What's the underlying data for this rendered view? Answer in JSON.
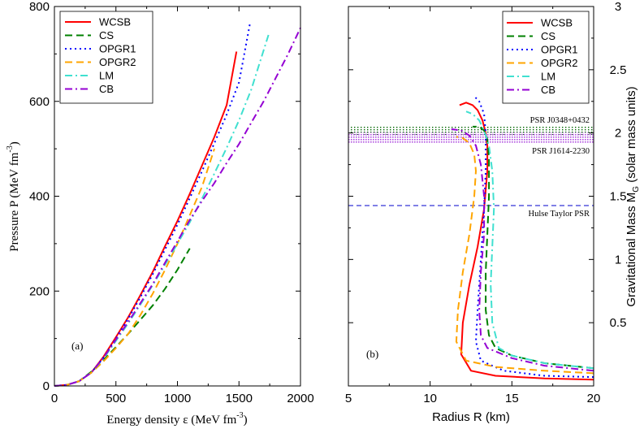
{
  "chart_data": [
    {
      "panel": "a",
      "type": "line",
      "panel_label": "(a)",
      "xlabel_main": "Energy density ε (MeV fm",
      "xlabel_sup": "-3",
      "xlabel_close": ")",
      "ylabel_main": "Pressure P (MeV fm",
      "ylabel_sup": "-3",
      "ylabel_close": ")",
      "xlim": [
        0,
        2000
      ],
      "ylim": [
        0,
        800
      ],
      "xticks": [
        0,
        500,
        1000,
        1500,
        2000
      ],
      "xtick_labels": [
        "0",
        "500",
        "1000",
        "1500",
        "2000"
      ],
      "yticks": [
        0,
        200,
        400,
        600,
        800
      ],
      "ytick_labels": [
        "0",
        "200",
        "400",
        "600",
        "800"
      ],
      "legend_position": "top-left",
      "series": [
        {
          "name": "WCSB",
          "color": "#ff0000",
          "dash": "solid",
          "x": [
            0,
            100,
            200,
            300,
            400,
            500,
            600,
            700,
            800,
            900,
            1000,
            1100,
            1200,
            1300,
            1400,
            1480
          ],
          "y": [
            0,
            2,
            10,
            28,
            62,
            103,
            145,
            192,
            241,
            295,
            348,
            405,
            465,
            525,
            592,
            705
          ]
        },
        {
          "name": "CS",
          "color": "#008000",
          "dash": "dash",
          "x": [
            0,
            100,
            200,
            300,
            400,
            500,
            600,
            700,
            800,
            900,
            1000,
            1100
          ],
          "y": [
            0,
            2,
            10,
            30,
            55,
            82,
            110,
            140,
            170,
            205,
            245,
            290
          ]
        },
        {
          "name": "OPGR1",
          "color": "#0000ff",
          "dash": "dot",
          "x": [
            0,
            100,
            200,
            300,
            400,
            500,
            600,
            700,
            800,
            900,
            1000,
            1100,
            1200,
            1300,
            1400,
            1500,
            1590
          ],
          "y": [
            0,
            2,
            10,
            28,
            60,
            100,
            142,
            188,
            236,
            288,
            340,
            396,
            453,
            512,
            572,
            640,
            765
          ]
        },
        {
          "name": "OPGR2",
          "color": "#ffa500",
          "dash": "dash",
          "x": [
            0,
            100,
            200,
            300,
            400,
            500,
            600,
            700,
            800,
            900,
            1000,
            1100,
            1200,
            1300
          ],
          "y": [
            0,
            2,
            10,
            28,
            52,
            80,
            110,
            150,
            195,
            245,
            300,
            360,
            420,
            500
          ]
        },
        {
          "name": "LM",
          "color": "#40e0d0",
          "dash": "dashdot",
          "x": [
            0,
            100,
            200,
            300,
            400,
            500,
            600,
            700,
            800,
            900,
            1000,
            1100,
            1200,
            1300,
            1400,
            1500,
            1600,
            1740
          ],
          "y": [
            0,
            2,
            10,
            28,
            58,
            95,
            132,
            172,
            213,
            256,
            300,
            345,
            395,
            448,
            502,
            560,
            625,
            740
          ]
        },
        {
          "name": "CB",
          "color": "#9400d3",
          "dash": "dashdot",
          "x": [
            0,
            100,
            200,
            300,
            400,
            500,
            600,
            700,
            800,
            900,
            1000,
            1100,
            1200,
            1300,
            1400,
            1500,
            1600,
            1700,
            1800,
            1900,
            2000
          ],
          "y": [
            0,
            2,
            10,
            28,
            60,
            98,
            135,
            175,
            215,
            260,
            305,
            350,
            390,
            428,
            470,
            510,
            555,
            600,
            650,
            700,
            755
          ]
        }
      ]
    },
    {
      "panel": "b",
      "type": "line",
      "panel_label": "(b)",
      "xlabel": "Radius R (km)",
      "ylabel_main": "Gravitational Mass M",
      "ylabel_sub": "G",
      "ylabel_rest": " (solar mass units)",
      "xlim": [
        5,
        20
      ],
      "ylim": [
        0,
        3
      ],
      "xticks": [
        5,
        10,
        15,
        20
      ],
      "xtick_labels": [
        "5",
        "10",
        "15",
        "20"
      ],
      "yticks": [
        0.5,
        1,
        1.5,
        2,
        2.5,
        3
      ],
      "ytick_labels": [
        "0.5",
        "1",
        "1.5",
        "2",
        "2.5",
        "3"
      ],
      "legend_position": "top-right",
      "reference_bands": [
        {
          "label": "PSR J0348+0432",
          "ymin": 1.97,
          "ymax": 2.05,
          "color": "#006400",
          "pattern": "dots"
        },
        {
          "label": "PSR J1614-2230",
          "ymin": 1.93,
          "ymax": 2.01,
          "color": "#9400d3",
          "pattern": "dots"
        }
      ],
      "reference_lines": [
        {
          "label": "Hulse Taylor PSR",
          "y": 1.44,
          "color": "#0000cd",
          "dash": "dash"
        }
      ],
      "series": [
        {
          "name": "WCSB",
          "color": "#ff0000",
          "dash": "solid",
          "x": [
            20,
            17,
            14,
            12.5,
            11.9,
            12.0,
            12.4,
            12.9,
            13.3,
            13.5,
            13.5,
            13.4,
            13.2,
            12.9,
            12.6,
            12.2,
            11.8
          ],
          "y": [
            0.05,
            0.06,
            0.08,
            0.12,
            0.25,
            0.5,
            0.8,
            1.1,
            1.4,
            1.7,
            1.9,
            2.0,
            2.1,
            2.18,
            2.22,
            2.24,
            2.22
          ]
        },
        {
          "name": "CS",
          "color": "#008000",
          "dash": "dash",
          "x": [
            20,
            17,
            15,
            14,
            13.6,
            13.4,
            13.4,
            13.5,
            13.6,
            13.6,
            13.5,
            13.3,
            13.0,
            12.6
          ],
          "y": [
            0.14,
            0.18,
            0.24,
            0.3,
            0.4,
            0.6,
            0.9,
            1.2,
            1.5,
            1.8,
            1.95,
            2.02,
            2.05,
            2.05
          ]
        },
        {
          "name": "OPGR1",
          "color": "#0000ff",
          "dash": "dot",
          "x": [
            20,
            17,
            14.5,
            13.1,
            12.8,
            12.9,
            13.1,
            13.3,
            13.4,
            13.4,
            13.3,
            13.0,
            12.7
          ],
          "y": [
            0.07,
            0.08,
            0.12,
            0.2,
            0.35,
            0.6,
            1.0,
            1.4,
            1.7,
            2.0,
            2.15,
            2.25,
            2.29
          ]
        },
        {
          "name": "OPGR2",
          "color": "#ffa500",
          "dash": "dash",
          "x": [
            20,
            17,
            14,
            12.2,
            11.6,
            11.7,
            12.0,
            12.4,
            12.7,
            12.8,
            12.7,
            12.4,
            12.0,
            11.6
          ],
          "y": [
            0.1,
            0.12,
            0.15,
            0.2,
            0.35,
            0.6,
            0.9,
            1.2,
            1.5,
            1.7,
            1.83,
            1.92,
            1.96,
            1.97
          ]
        },
        {
          "name": "LM",
          "color": "#40e0d0",
          "dash": "dashdot",
          "x": [
            20,
            17,
            15,
            14.2,
            13.8,
            13.7,
            13.8,
            13.9,
            13.8,
            13.6,
            13.3,
            13.0,
            12.6,
            12.2
          ],
          "y": [
            0.14,
            0.18,
            0.24,
            0.3,
            0.5,
            0.8,
            1.1,
            1.4,
            1.7,
            1.9,
            2.02,
            2.1,
            2.15,
            2.17
          ]
        },
        {
          "name": "CB",
          "color": "#9400d3",
          "dash": "dashdot",
          "x": [
            20,
            17,
            15,
            13.5,
            13.1,
            13.0,
            13.1,
            13.3,
            13.3,
            13.1,
            12.8,
            12.4,
            11.9,
            11.3
          ],
          "y": [
            0.12,
            0.16,
            0.22,
            0.3,
            0.4,
            0.6,
            0.9,
            1.2,
            1.5,
            1.75,
            1.9,
            1.98,
            2.02,
            2.03
          ]
        }
      ]
    }
  ]
}
